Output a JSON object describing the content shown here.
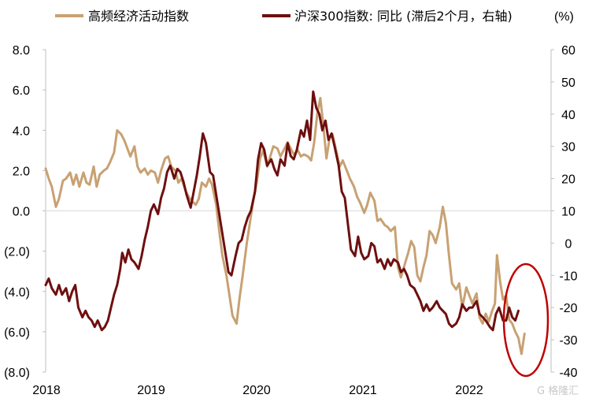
{
  "chart_data": {
    "type": "line",
    "title": "",
    "x_ticks": [
      "2018",
      "2019",
      "2020",
      "2021",
      "2022"
    ],
    "y_left": {
      "range": [
        -8,
        8
      ],
      "ticks": [
        "8.0",
        "6.0",
        "4.0",
        "2.0",
        "0.0",
        "(2.0)",
        "(4.0)",
        "(6.0)",
        "(8.0)"
      ],
      "negative_color": "#d62020"
    },
    "y_right": {
      "range": [
        -40,
        60
      ],
      "unit": "(%)",
      "ticks": [
        "60",
        "50",
        "40",
        "30",
        "20",
        "10",
        "0",
        "-10",
        "-20",
        "-30",
        "-40"
      ],
      "negative_color": "#d62020"
    },
    "series": [
      {
        "name": "高频经济活动指数",
        "axis": "left",
        "color": "#c8a173",
        "points": [
          [
            2018.0,
            2.1
          ],
          [
            2018.03,
            1.6
          ],
          [
            2018.06,
            1.2
          ],
          [
            2018.1,
            0.2
          ],
          [
            2018.13,
            0.6
          ],
          [
            2018.17,
            1.5
          ],
          [
            2018.2,
            1.6
          ],
          [
            2018.24,
            1.9
          ],
          [
            2018.27,
            1.3
          ],
          [
            2018.3,
            1.8
          ],
          [
            2018.33,
            1.2
          ],
          [
            2018.37,
            1.9
          ],
          [
            2018.4,
            1.4
          ],
          [
            2018.43,
            1.3
          ],
          [
            2018.47,
            2.2
          ],
          [
            2018.5,
            1.2
          ],
          [
            2018.53,
            1.8
          ],
          [
            2018.57,
            2.0
          ],
          [
            2018.6,
            2.1
          ],
          [
            2018.63,
            2.4
          ],
          [
            2018.67,
            2.9
          ],
          [
            2018.7,
            4.0
          ],
          [
            2018.74,
            3.8
          ],
          [
            2018.77,
            3.5
          ],
          [
            2018.8,
            3.1
          ],
          [
            2018.83,
            2.7
          ],
          [
            2018.87,
            3.2
          ],
          [
            2018.9,
            2.2
          ],
          [
            2018.93,
            1.9
          ],
          [
            2018.97,
            2.1
          ],
          [
            2019.0,
            1.8
          ],
          [
            2019.03,
            2.0
          ],
          [
            2019.07,
            1.9
          ],
          [
            2019.1,
            1.4
          ],
          [
            2019.13,
            2.0
          ],
          [
            2019.17,
            2.6
          ],
          [
            2019.2,
            2.7
          ],
          [
            2019.23,
            2.2
          ],
          [
            2019.27,
            2.0
          ],
          [
            2019.3,
            1.4
          ],
          [
            2019.33,
            1.6
          ],
          [
            2019.37,
            1.0
          ],
          [
            2019.4,
            0.7
          ],
          [
            2019.43,
            0.5
          ],
          [
            2019.47,
            0.3
          ],
          [
            2019.5,
            0.6
          ],
          [
            2019.53,
            1.4
          ],
          [
            2019.57,
            1.2
          ],
          [
            2019.6,
            1.6
          ],
          [
            2019.63,
            1.3
          ],
          [
            2019.67,
            0.3
          ],
          [
            2019.7,
            -1.0
          ],
          [
            2019.73,
            -2.2
          ],
          [
            2019.77,
            -3.2
          ],
          [
            2019.8,
            -4.2
          ],
          [
            2019.83,
            -5.2
          ],
          [
            2019.87,
            -5.6
          ],
          [
            2019.9,
            -4.3
          ],
          [
            2019.93,
            -3.2
          ],
          [
            2019.97,
            -1.6
          ],
          [
            2020.0,
            -0.6
          ],
          [
            2020.03,
            0.4
          ],
          [
            2020.07,
            1.5
          ],
          [
            2020.1,
            2.6
          ],
          [
            2020.13,
            3.0
          ],
          [
            2020.17,
            2.2
          ],
          [
            2020.2,
            2.7
          ],
          [
            2020.23,
            3.2
          ],
          [
            2020.27,
            3.1
          ],
          [
            2020.3,
            2.7
          ],
          [
            2020.33,
            3.0
          ],
          [
            2020.37,
            3.4
          ],
          [
            2020.4,
            3.1
          ],
          [
            2020.43,
            2.8
          ],
          [
            2020.47,
            3.0
          ],
          [
            2020.5,
            2.7
          ],
          [
            2020.53,
            2.8
          ],
          [
            2020.57,
            2.7
          ],
          [
            2020.6,
            2.5
          ],
          [
            2020.63,
            3.4
          ],
          [
            2020.66,
            4.8
          ],
          [
            2020.69,
            5.6
          ],
          [
            2020.72,
            4.2
          ],
          [
            2020.75,
            2.6
          ],
          [
            2020.78,
            3.6
          ],
          [
            2020.81,
            3.8
          ],
          [
            2020.85,
            2.9
          ],
          [
            2020.88,
            2.2
          ],
          [
            2020.91,
            2.5
          ],
          [
            2020.95,
            2.0
          ],
          [
            2020.98,
            1.6
          ],
          [
            2021.02,
            1.2
          ],
          [
            2021.05,
            0.7
          ],
          [
            2021.08,
            0.4
          ],
          [
            2021.12,
            -0.1
          ],
          [
            2021.15,
            0.3
          ],
          [
            2021.18,
            0.9
          ],
          [
            2021.22,
            0.5
          ],
          [
            2021.25,
            -0.5
          ],
          [
            2021.28,
            -0.4
          ],
          [
            2021.32,
            -0.7
          ],
          [
            2021.35,
            -0.8
          ],
          [
            2021.38,
            -1.0
          ],
          [
            2021.42,
            -0.8
          ],
          [
            2021.45,
            -2.8
          ],
          [
            2021.48,
            -3.3
          ],
          [
            2021.52,
            -2.6
          ],
          [
            2021.55,
            -2.1
          ],
          [
            2021.58,
            -1.5
          ],
          [
            2021.61,
            -1.8
          ],
          [
            2021.64,
            -3.2
          ],
          [
            2021.67,
            -3.5
          ],
          [
            2021.7,
            -2.8
          ],
          [
            2021.73,
            -2.2
          ],
          [
            2021.76,
            -1.0
          ],
          [
            2021.79,
            -1.2
          ],
          [
            2021.82,
            -1.6
          ],
          [
            2021.86,
            -0.8
          ],
          [
            2021.89,
            0.2
          ],
          [
            2021.92,
            -0.6
          ],
          [
            2021.95,
            -2.2
          ],
          [
            2021.98,
            -3.6
          ],
          [
            2022.02,
            -3.9
          ],
          [
            2022.05,
            -3.6
          ],
          [
            2022.08,
            -4.8
          ],
          [
            2022.12,
            -3.8
          ],
          [
            2022.15,
            -4.2
          ],
          [
            2022.18,
            -4.6
          ],
          [
            2022.22,
            -4.1
          ],
          [
            2022.25,
            -5.3
          ],
          [
            2022.28,
            -5.6
          ],
          [
            2022.31,
            -5.1
          ],
          [
            2022.34,
            -5.5
          ],
          [
            2022.37,
            -5.0
          ],
          [
            2022.4,
            -4.6
          ],
          [
            2022.42,
            -2.2
          ],
          [
            2022.45,
            -3.5
          ],
          [
            2022.48,
            -4.4
          ],
          [
            2022.51,
            -4.2
          ],
          [
            2022.54,
            -5.4
          ],
          [
            2022.57,
            -5.6
          ],
          [
            2022.6,
            -6.0
          ],
          [
            2022.63,
            -6.3
          ],
          [
            2022.66,
            -7.1
          ],
          [
            2022.69,
            -6.1
          ]
        ]
      },
      {
        "name": "沪深300指数: 同比 (滞后2个月，右轴)",
        "axis": "right",
        "color": "#6e0f0f",
        "points": [
          [
            2018.0,
            -13
          ],
          [
            2018.03,
            -11
          ],
          [
            2018.06,
            -14
          ],
          [
            2018.1,
            -16
          ],
          [
            2018.13,
            -13
          ],
          [
            2018.16,
            -16
          ],
          [
            2018.2,
            -14
          ],
          [
            2018.23,
            -18
          ],
          [
            2018.26,
            -15
          ],
          [
            2018.29,
            -13
          ],
          [
            2018.32,
            -20
          ],
          [
            2018.36,
            -23
          ],
          [
            2018.39,
            -21
          ],
          [
            2018.42,
            -23
          ],
          [
            2018.45,
            -24
          ],
          [
            2018.48,
            -26
          ],
          [
            2018.51,
            -24
          ],
          [
            2018.55,
            -27
          ],
          [
            2018.58,
            -26
          ],
          [
            2018.61,
            -24
          ],
          [
            2018.64,
            -20
          ],
          [
            2018.67,
            -16
          ],
          [
            2018.7,
            -13
          ],
          [
            2018.73,
            -8
          ],
          [
            2018.75,
            -3
          ],
          [
            2018.78,
            -6
          ],
          [
            2018.81,
            -2
          ],
          [
            2018.84,
            -5
          ],
          [
            2018.87,
            -6
          ],
          [
            2018.91,
            -8
          ],
          [
            2018.94,
            -4
          ],
          [
            2018.97,
            1
          ],
          [
            2019.0,
            5
          ],
          [
            2019.03,
            10
          ],
          [
            2019.06,
            12
          ],
          [
            2019.1,
            9
          ],
          [
            2019.13,
            14
          ],
          [
            2019.16,
            17
          ],
          [
            2019.19,
            22
          ],
          [
            2019.22,
            24
          ],
          [
            2019.26,
            20
          ],
          [
            2019.29,
            23
          ],
          [
            2019.32,
            22
          ],
          [
            2019.35,
            19
          ],
          [
            2019.38,
            15
          ],
          [
            2019.42,
            11
          ],
          [
            2019.45,
            16
          ],
          [
            2019.48,
            21
          ],
          [
            2019.51,
            27
          ],
          [
            2019.54,
            34
          ],
          [
            2019.57,
            31
          ],
          [
            2019.61,
            22
          ],
          [
            2019.64,
            21
          ],
          [
            2019.67,
            15
          ],
          [
            2019.7,
            9
          ],
          [
            2019.73,
            3
          ],
          [
            2019.76,
            -3
          ],
          [
            2019.79,
            -9
          ],
          [
            2019.82,
            -10
          ],
          [
            2019.86,
            -4
          ],
          [
            2019.89,
            0
          ],
          [
            2019.92,
            1
          ],
          [
            2019.95,
            5
          ],
          [
            2019.98,
            8
          ],
          [
            2020.01,
            10
          ],
          [
            2020.05,
            16
          ],
          [
            2020.08,
            26
          ],
          [
            2020.11,
            31
          ],
          [
            2020.14,
            29
          ],
          [
            2020.17,
            24
          ],
          [
            2020.21,
            26
          ],
          [
            2020.24,
            23
          ],
          [
            2020.27,
            21
          ],
          [
            2020.3,
            26
          ],
          [
            2020.34,
            24
          ],
          [
            2020.37,
            31
          ],
          [
            2020.4,
            27
          ],
          [
            2020.43,
            26
          ],
          [
            2020.46,
            29
          ],
          [
            2020.5,
            35
          ],
          [
            2020.53,
            33
          ],
          [
            2020.56,
            38
          ],
          [
            2020.59,
            32
          ],
          [
            2020.62,
            47
          ],
          [
            2020.65,
            42
          ],
          [
            2020.68,
            40
          ],
          [
            2020.71,
            35
          ],
          [
            2020.74,
            38
          ],
          [
            2020.77,
            32
          ],
          [
            2020.8,
            34
          ],
          [
            2020.83,
            30
          ],
          [
            2020.87,
            24
          ],
          [
            2020.9,
            16
          ],
          [
            2020.93,
            14
          ],
          [
            2020.96,
            6
          ],
          [
            2020.99,
            -2
          ],
          [
            2021.03,
            -4
          ],
          [
            2021.06,
            2
          ],
          [
            2021.09,
            -3
          ],
          [
            2021.12,
            -5
          ],
          [
            2021.16,
            -4
          ],
          [
            2021.19,
            0
          ],
          [
            2021.22,
            -1
          ],
          [
            2021.25,
            -6
          ],
          [
            2021.28,
            -5
          ],
          [
            2021.32,
            -8
          ],
          [
            2021.35,
            -5
          ],
          [
            2021.38,
            -7
          ],
          [
            2021.41,
            -5
          ],
          [
            2021.45,
            -6
          ],
          [
            2021.48,
            -9
          ],
          [
            2021.51,
            -8
          ],
          [
            2021.54,
            -10
          ],
          [
            2021.57,
            -13
          ],
          [
            2021.61,
            -14
          ],
          [
            2021.64,
            -16
          ],
          [
            2021.67,
            -18
          ],
          [
            2021.7,
            -21
          ],
          [
            2021.73,
            -19
          ],
          [
            2021.76,
            -21
          ],
          [
            2021.79,
            -20
          ],
          [
            2021.83,
            -18
          ],
          [
            2021.86,
            -20
          ],
          [
            2021.89,
            -21
          ],
          [
            2021.92,
            -22
          ],
          [
            2021.95,
            -25
          ],
          [
            2021.98,
            -26
          ],
          [
            2022.02,
            -25
          ],
          [
            2022.05,
            -23
          ],
          [
            2022.08,
            -19
          ],
          [
            2022.12,
            -21
          ],
          [
            2022.15,
            -20
          ],
          [
            2022.18,
            -20
          ],
          [
            2022.22,
            -18
          ],
          [
            2022.25,
            -22
          ],
          [
            2022.28,
            -23
          ],
          [
            2022.31,
            -24
          ],
          [
            2022.35,
            -26
          ],
          [
            2022.38,
            -27
          ],
          [
            2022.41,
            -22
          ],
          [
            2022.44,
            -20
          ],
          [
            2022.48,
            -24
          ],
          [
            2022.51,
            -24
          ],
          [
            2022.54,
            -20
          ],
          [
            2022.57,
            -23
          ],
          [
            2022.6,
            -24
          ],
          [
            2022.63,
            -21
          ]
        ]
      }
    ],
    "legend": "top",
    "grid": false,
    "annotation": "red ellipse highlighting 2022 recent decline",
    "annotation_color": "#c00000",
    "zero_line_color": "#d9d9d9"
  },
  "watermark": "G 格隆汇"
}
